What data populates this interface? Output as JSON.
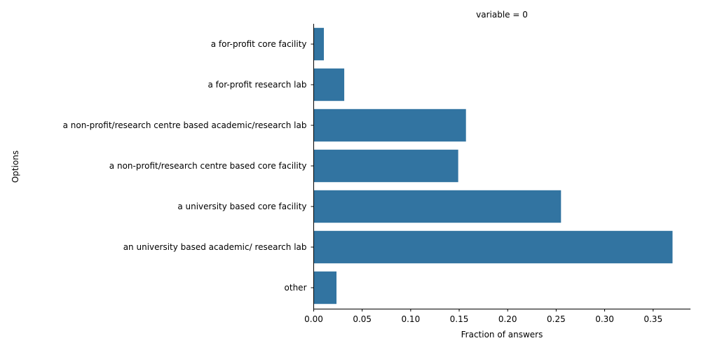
{
  "chart_data": {
    "type": "bar",
    "orientation": "horizontal",
    "title": "variable = 0",
    "xlabel": "Fraction of answers",
    "ylabel": "Options",
    "xlim": [
      0,
      0.3885
    ],
    "xticks": [
      0.0,
      0.05,
      0.1,
      0.15,
      0.2,
      0.25,
      0.3,
      0.35
    ],
    "xtick_labels": [
      "0.00",
      "0.05",
      "0.10",
      "0.15",
      "0.20",
      "0.25",
      "0.30",
      "0.35"
    ],
    "categories": [
      "a for-profit core facility",
      "a for-profit research lab",
      "a non-profit/research centre based academic/research lab",
      "a non-profit/research centre based core facility",
      "a university based core facility",
      "an university based academic/ research lab",
      "other"
    ],
    "values": [
      0.0105,
      0.0315,
      0.157,
      0.149,
      0.255,
      0.37,
      0.0235
    ],
    "grid": false,
    "bar_color": "#3274a1"
  }
}
